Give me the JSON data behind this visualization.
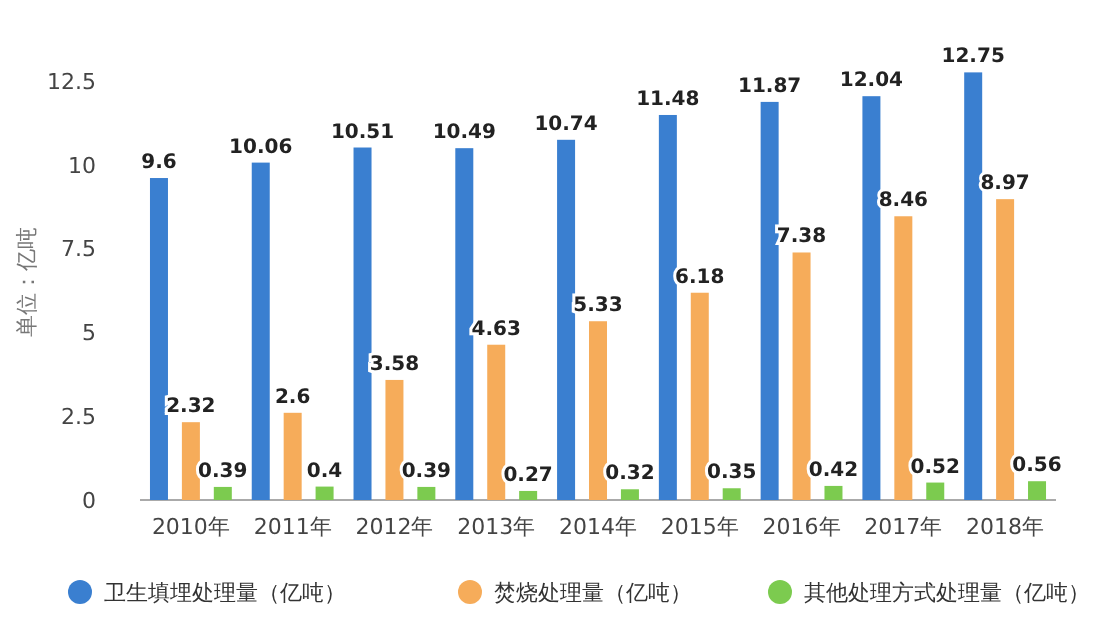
{
  "chart_data": {
    "type": "bar",
    "ylabel": "单位：亿吨",
    "categories": [
      "2010年",
      "2011年",
      "2012年",
      "2013年",
      "2014年",
      "2015年",
      "2016年",
      "2017年",
      "2018年"
    ],
    "series": [
      {
        "name": "卫生填埋处理量（亿吨）",
        "color": "#3a7fd0",
        "values": [
          9.6,
          10.06,
          10.51,
          10.49,
          10.74,
          11.48,
          11.87,
          12.04,
          12.75
        ]
      },
      {
        "name": "焚烧处理量（亿吨）",
        "color": "#f6ac5a",
        "values": [
          2.32,
          2.6,
          3.58,
          4.63,
          5.33,
          6.18,
          7.38,
          8.46,
          8.97
        ]
      },
      {
        "name": "其他处理方式处理量（亿吨）",
        "color": "#7ccb4f",
        "values": [
          0.39,
          0.4,
          0.39,
          0.27,
          0.32,
          0.35,
          0.42,
          0.52,
          0.56
        ]
      }
    ],
    "ylim": [
      0,
      13
    ],
    "yticks": [
      0,
      2.5,
      5,
      7.5,
      10,
      12.5
    ],
    "data_labels": true,
    "legend": "bottom",
    "grid": false
  }
}
